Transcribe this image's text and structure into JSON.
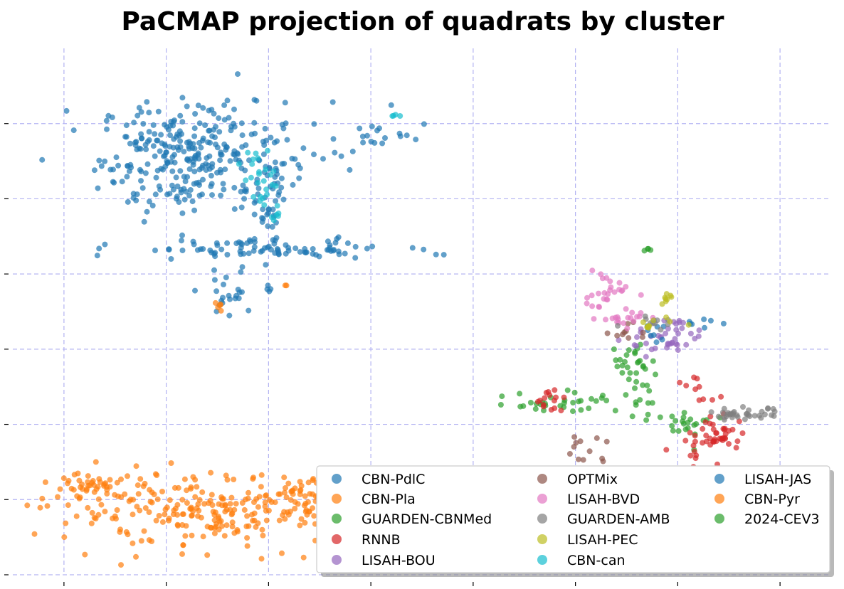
{
  "chart_data": {
    "type": "scatter",
    "title": "PaCMAP projection of quadrats by cluster",
    "xlabel": "",
    "ylabel": "",
    "xlim": [
      -1.0,
      15.0
    ],
    "ylim": [
      -8.0,
      13.0
    ],
    "x_gridlines": [
      0,
      2,
      4,
      6,
      8,
      10,
      12,
      14
    ],
    "y_gridlines": [
      -8,
      -5,
      -2,
      1,
      4,
      7,
      10
    ],
    "grid": true,
    "tick_labels_shown": false,
    "marker_alpha": 0.7,
    "legend": {
      "placement": "lower-right",
      "columns": 3,
      "shadow": true
    },
    "series": [
      {
        "name": "CBN-PdlC",
        "color": "#1f77b4",
        "clusters": [
          {
            "cx": 2.5,
            "cy": 8.7,
            "sx": 0.9,
            "sy": 1.1,
            "n": 300
          },
          {
            "cx": 3.9,
            "cy": 5.0,
            "sx": 1.3,
            "sy": 0.2,
            "n": 90
          },
          {
            "cx": 4.0,
            "cy": 7.0,
            "sx": 0.2,
            "sy": 1.4,
            "n": 45
          },
          {
            "cx": 3.2,
            "cy": 3.2,
            "sx": 0.3,
            "sy": 0.6,
            "n": 25
          },
          {
            "cx": 6.0,
            "cy": 9.5,
            "sx": 0.8,
            "sy": 0.6,
            "n": 25
          },
          {
            "cx": 11.9,
            "cy": 2.0,
            "sx": 0.4,
            "sy": 0.1,
            "n": 12
          }
        ]
      },
      {
        "name": "CBN-Pla",
        "color": "#ff7f0e",
        "clusters": [
          {
            "cx": 3.0,
            "cy": -5.5,
            "sx": 1.6,
            "sy": 0.7,
            "n": 260
          },
          {
            "cx": 0.6,
            "cy": -4.5,
            "sx": 0.4,
            "sy": 0.25,
            "n": 40
          },
          {
            "cx": 4.8,
            "cy": -5.0,
            "sx": 0.5,
            "sy": 0.6,
            "n": 50
          },
          {
            "cx": 3.1,
            "cy": 2.7,
            "sx": 0.08,
            "sy": 0.15,
            "n": 5
          }
        ]
      },
      {
        "name": "GUARDEN-CBNMed",
        "color": "#2ca02c",
        "clusters": [
          {
            "cx": 11.1,
            "cy": 0.5,
            "sx": 0.25,
            "sy": 0.4,
            "n": 25
          },
          {
            "cx": 10.0,
            "cy": -1.0,
            "sx": 0.4,
            "sy": 0.25,
            "n": 20
          },
          {
            "cx": 9.3,
            "cy": -1.2,
            "sx": 0.35,
            "sy": 0.15,
            "n": 12
          },
          {
            "cx": 11.3,
            "cy": -0.9,
            "sx": 0.2,
            "sy": 0.5,
            "n": 15
          },
          {
            "cx": 12.3,
            "cy": -2.0,
            "sx": 0.25,
            "sy": 0.3,
            "n": 15
          },
          {
            "cx": 11.4,
            "cy": 5.0,
            "sx": 0.04,
            "sy": 0.04,
            "n": 4
          }
        ]
      },
      {
        "name": "RNNB",
        "color": "#d62728",
        "clusters": [
          {
            "cx": 12.8,
            "cy": -2.4,
            "sx": 0.3,
            "sy": 0.3,
            "n": 40
          },
          {
            "cx": 12.4,
            "cy": -3.8,
            "sx": 0.3,
            "sy": 0.5,
            "n": 30
          },
          {
            "cx": 9.5,
            "cy": -1.1,
            "sx": 0.15,
            "sy": 0.3,
            "n": 15
          },
          {
            "cx": 12.3,
            "cy": -0.6,
            "sx": 0.25,
            "sy": 0.3,
            "n": 10
          }
        ]
      },
      {
        "name": "LISAH-BOU",
        "color": "#9467bd",
        "clusters": [
          {
            "cx": 11.8,
            "cy": 1.3,
            "sx": 0.4,
            "sy": 0.4,
            "n": 35
          },
          {
            "cx": 12.1,
            "cy": 2.1,
            "sx": 0.1,
            "sy": 0.05,
            "n": 5
          }
        ]
      },
      {
        "name": "OPTMix",
        "color": "#8c564b",
        "clusters": [
          {
            "cx": 9.6,
            "cy": -4.6,
            "sx": 0.3,
            "sy": 0.3,
            "n": 35
          },
          {
            "cx": 10.2,
            "cy": -3.0,
            "sx": 0.25,
            "sy": 0.4,
            "n": 12
          },
          {
            "cx": 11.0,
            "cy": 1.8,
            "sx": 0.25,
            "sy": 0.2,
            "n": 10
          }
        ]
      },
      {
        "name": "LISAH-BVD",
        "color": "#e377c2",
        "clusters": [
          {
            "cx": 10.6,
            "cy": 3.2,
            "sx": 0.25,
            "sy": 0.5,
            "n": 30
          },
          {
            "cx": 11.0,
            "cy": 2.2,
            "sx": 0.25,
            "sy": 0.15,
            "n": 15
          }
        ]
      },
      {
        "name": "GUARDEN-AMB",
        "color": "#7f7f7f",
        "clusters": [
          {
            "cx": 13.3,
            "cy": -1.6,
            "sx": 0.35,
            "sy": 0.12,
            "n": 35
          },
          {
            "cx": 11.5,
            "cy": 2.0,
            "sx": 0.3,
            "sy": 0.15,
            "n": 10
          }
        ]
      },
      {
        "name": "LISAH-PEC",
        "color": "#bcbd22",
        "clusters": [
          {
            "cx": 11.8,
            "cy": 3.0,
            "sx": 0.05,
            "sy": 0.1,
            "n": 8
          },
          {
            "cx": 11.5,
            "cy": 1.9,
            "sx": 0.2,
            "sy": 0.2,
            "n": 10
          }
        ]
      },
      {
        "name": "CBN-can",
        "color": "#17becf",
        "clusters": [
          {
            "cx": 3.8,
            "cy": 8.0,
            "sx": 0.15,
            "sy": 0.6,
            "n": 25
          },
          {
            "cx": 4.2,
            "cy": 6.3,
            "sx": 0.1,
            "sy": 0.15,
            "n": 6
          },
          {
            "cx": 6.5,
            "cy": 10.3,
            "sx": 0.08,
            "sy": 0.05,
            "n": 4
          }
        ]
      },
      {
        "name": "LISAH-JAS",
        "color": "#1f77b4",
        "clusters": [
          {
            "cx": 11.5,
            "cy": 1.5,
            "sx": 0.15,
            "sy": 0.15,
            "n": 4
          }
        ]
      },
      {
        "name": "CBN-Pyr",
        "color": "#ff7f0e",
        "clusters": [
          {
            "cx": 4.3,
            "cy": 3.5,
            "sx": 0.05,
            "sy": 0.05,
            "n": 2
          }
        ]
      },
      {
        "name": "2024-CEV3",
        "color": "#2ca02c",
        "clusters": [
          {
            "cx": 12.1,
            "cy": -1.9,
            "sx": 0.15,
            "sy": 0.15,
            "n": 5
          }
        ]
      }
    ]
  }
}
